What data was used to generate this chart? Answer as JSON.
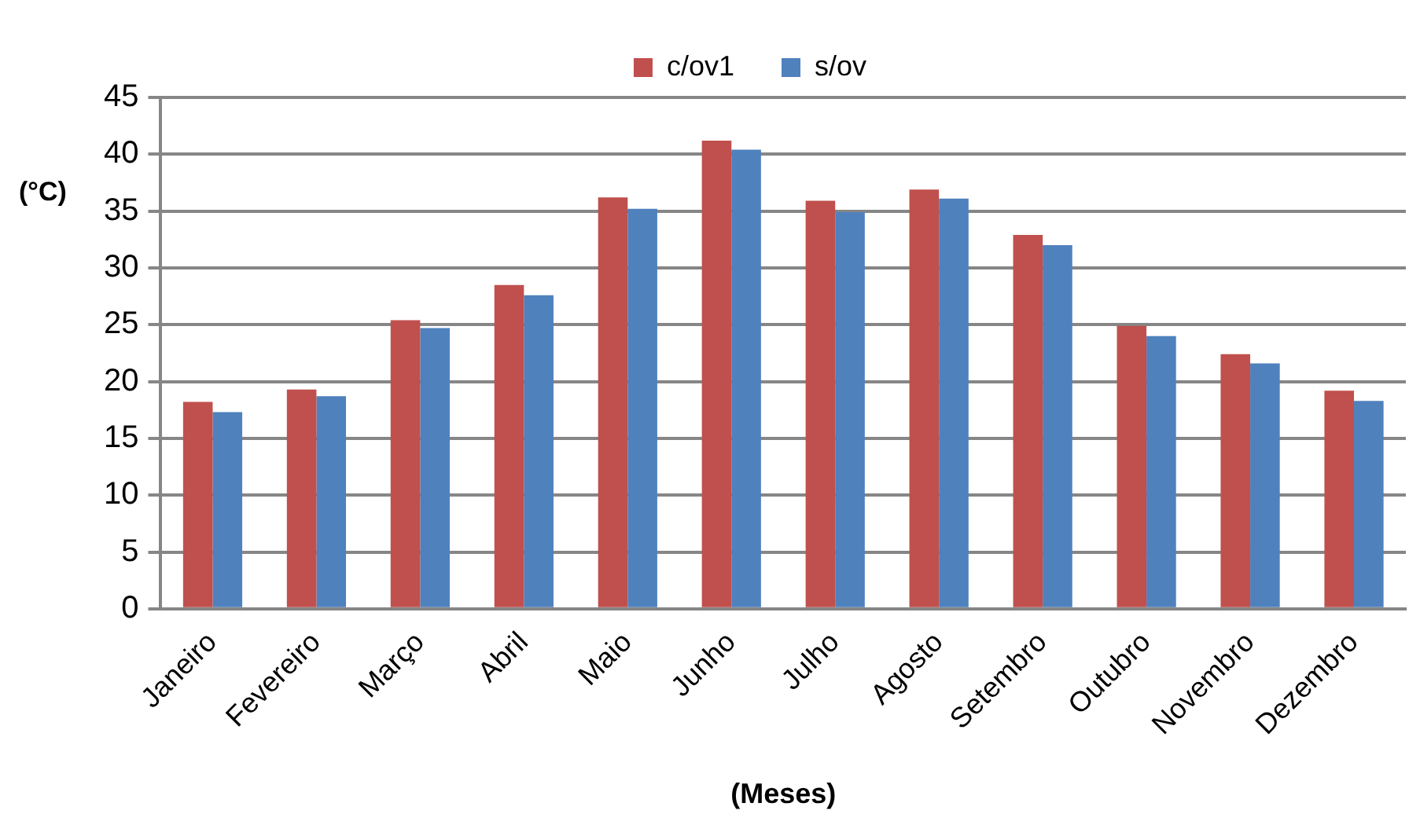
{
  "chart_data": {
    "type": "bar",
    "xlabel": "(Meses)",
    "ylabel": "(°C)",
    "categories": [
      "Janeiro",
      "Fevereiro",
      "Março",
      "Abril",
      "Maio",
      "Junho",
      "Julho",
      "Agosto",
      "Setembro",
      "Outubro",
      "Novembro",
      "Dezembro"
    ],
    "series": [
      {
        "name": "c/ov1",
        "color": "#c0504d",
        "values": [
          18.2,
          19.3,
          25.4,
          28.5,
          36.2,
          41.2,
          35.9,
          36.9,
          32.9,
          24.9,
          22.4,
          19.2
        ]
      },
      {
        "name": "s/ov",
        "color": "#4f81bd",
        "values": [
          17.3,
          18.7,
          24.7,
          27.6,
          35.2,
          40.4,
          34.9,
          36.1,
          32.0,
          24.0,
          21.6,
          18.3
        ]
      }
    ],
    "ylim": [
      0,
      45
    ],
    "yticks": [
      0,
      5,
      10,
      15,
      20,
      25,
      30,
      35,
      40,
      45
    ],
    "grid": "y",
    "legend": "top"
  }
}
